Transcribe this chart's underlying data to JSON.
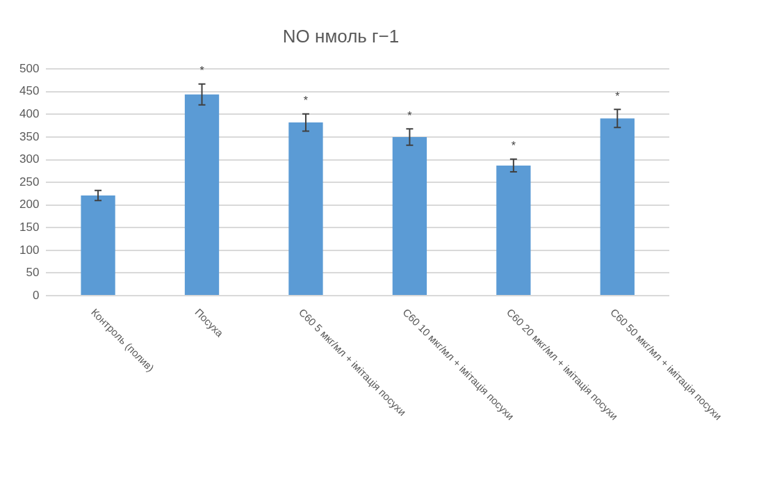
{
  "chart_data": {
    "type": "bar",
    "title": "NO нмоль г−1",
    "categories": [
      "Контроль (полив)",
      "Посуха",
      "С60 5 мкг/мл + імітація посухи",
      "С60 10 мкг/мл + імітація посухи",
      "С60 20 мкг/мл + імітація посухи",
      "С60 50 мкг/мл + імітація посухи"
    ],
    "values": [
      221,
      444,
      382,
      350,
      287,
      391
    ],
    "errors": [
      11,
      23,
      19,
      18,
      14,
      20
    ],
    "color": "#5b9bd5",
    "value_labels": [
      null,
      "*",
      "*",
      "*",
      "*",
      "*"
    ],
    "ylim": [
      0,
      500
    ],
    "yticks": [
      0,
      50,
      100,
      150,
      200,
      250,
      300,
      350,
      400,
      450,
      500
    ],
    "grid": "y"
  }
}
